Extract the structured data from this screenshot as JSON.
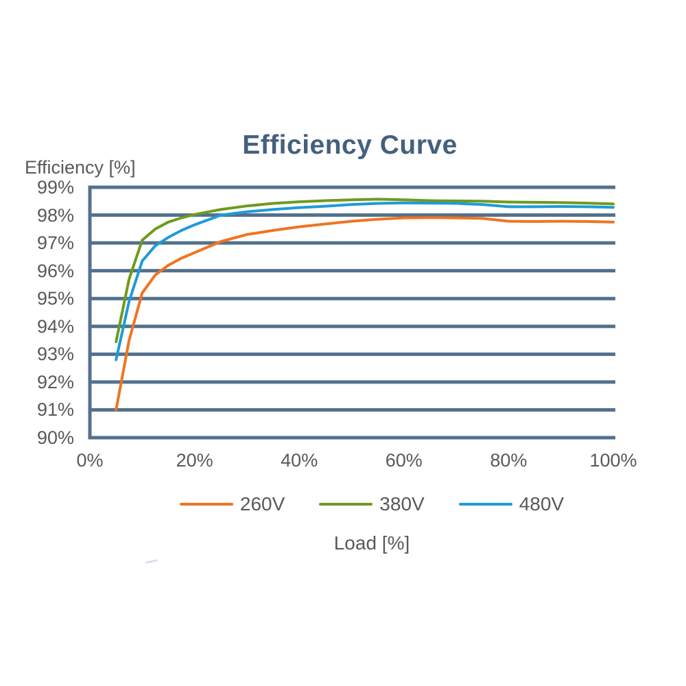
{
  "colors": {
    "grid": "#53718E",
    "title_text": "#44607E",
    "axis_text": "#595959"
  },
  "chart_data": {
    "type": "line",
    "title": "Efficiency Curve",
    "xlabel": "Load [%]",
    "ylabel": "Efficiency [%]",
    "xlim": [
      0,
      100
    ],
    "ylim": [
      90,
      99
    ],
    "grid": "horizontal-only",
    "legend_position": "bottom",
    "x_ticks": [
      "0%",
      "20%",
      "40%",
      "60%",
      "80%",
      "100%"
    ],
    "x_tick_values": [
      0,
      20,
      40,
      60,
      80,
      100
    ],
    "y_ticks": [
      "99%",
      "98%",
      "97%",
      "96%",
      "95%",
      "94%",
      "93%",
      "92%",
      "91%",
      "90%"
    ],
    "y_tick_values": [
      99,
      98,
      97,
      96,
      95,
      94,
      93,
      92,
      91,
      90
    ],
    "x": [
      5,
      7.5,
      10,
      12.5,
      15,
      17.5,
      20,
      25,
      30,
      35,
      40,
      45,
      50,
      55,
      60,
      65,
      70,
      75,
      80,
      85,
      90,
      95,
      100
    ],
    "series": [
      {
        "name": "260V",
        "color": "#F07420",
        "values": [
          91.0,
          93.5,
          95.2,
          95.85,
          96.2,
          96.45,
          96.65,
          97.05,
          97.3,
          97.45,
          97.58,
          97.68,
          97.78,
          97.85,
          97.9,
          97.91,
          97.9,
          97.88,
          97.78,
          97.77,
          97.78,
          97.77,
          97.75
        ]
      },
      {
        "name": "380V",
        "color": "#6F9A1E",
        "values": [
          93.45,
          95.7,
          97.1,
          97.5,
          97.75,
          97.9,
          98.02,
          98.2,
          98.33,
          98.42,
          98.48,
          98.52,
          98.55,
          98.57,
          98.55,
          98.52,
          98.51,
          98.5,
          98.47,
          98.46,
          98.45,
          98.43,
          98.4
        ]
      },
      {
        "name": "480V",
        "color": "#1E9BD7",
        "values": [
          92.8,
          94.9,
          96.35,
          96.9,
          97.2,
          97.45,
          97.65,
          98.0,
          98.12,
          98.2,
          98.27,
          98.32,
          98.38,
          98.42,
          98.44,
          98.43,
          98.42,
          98.38,
          98.3,
          98.3,
          98.31,
          98.3,
          98.28
        ]
      }
    ]
  }
}
